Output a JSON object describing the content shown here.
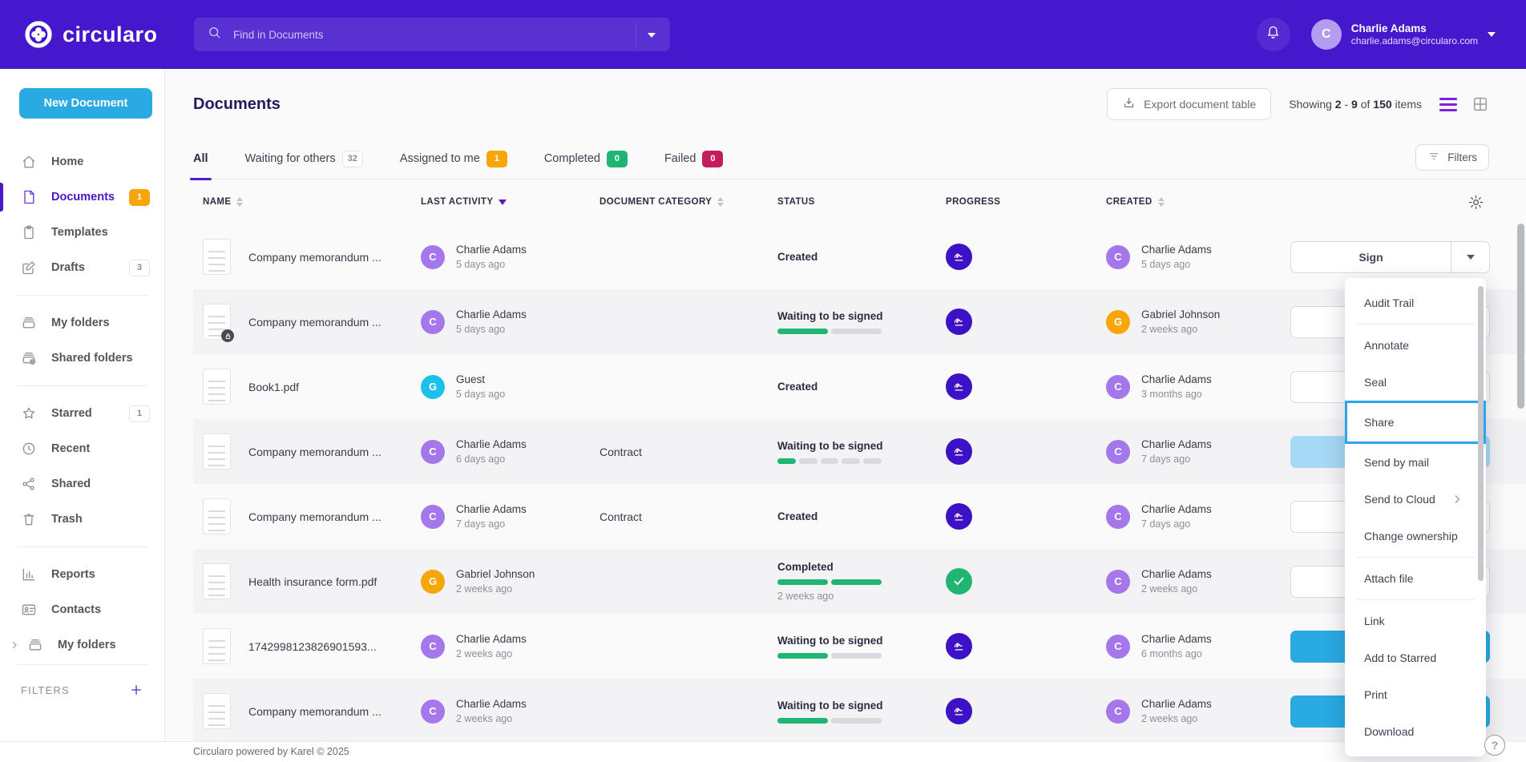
{
  "topbar": {
    "brand": "circularo",
    "search_placeholder": "Find in Documents",
    "user_initial": "C",
    "user_name": "Charlie Adams",
    "user_email": "charlie.adams@circularo.com"
  },
  "sidebar": {
    "new_document": "New Document",
    "sections": [
      {
        "items": [
          {
            "label": "Home",
            "icon": "home"
          },
          {
            "label": "Documents",
            "icon": "document",
            "active": true,
            "badge": "1",
            "badge_type": "orange"
          },
          {
            "label": "Templates",
            "icon": "template"
          },
          {
            "label": "Drafts",
            "icon": "draft",
            "badge": "3",
            "badge_type": "plain"
          }
        ]
      },
      {
        "items": [
          {
            "label": "My folders",
            "icon": "folder"
          },
          {
            "label": "Shared folders",
            "icon": "shared-folder"
          }
        ]
      },
      {
        "items": [
          {
            "label": "Starred",
            "icon": "star",
            "badge": "1",
            "badge_type": "plain"
          },
          {
            "label": "Recent",
            "icon": "clock"
          },
          {
            "label": "Shared",
            "icon": "share"
          },
          {
            "label": "Trash",
            "icon": "trash"
          }
        ]
      },
      {
        "items": [
          {
            "label": "Reports",
            "icon": "report"
          },
          {
            "label": "Contacts",
            "icon": "contact"
          },
          {
            "label": "My folders",
            "icon": "folder",
            "expandable": true
          }
        ]
      }
    ],
    "filters_label": "FILTERS"
  },
  "header": {
    "title": "Documents",
    "export_button": "Export document table",
    "showing": {
      "prefix": "Showing",
      "from": "2",
      "sep": "-",
      "to": "9",
      "of_word": "of",
      "total": "150",
      "items_word": "items"
    }
  },
  "tabs": [
    {
      "label": "All",
      "active": true
    },
    {
      "label": "Waiting for others",
      "badge": "32",
      "badge_type": "plain"
    },
    {
      "label": "Assigned to me",
      "badge": "1",
      "badge_type": "orange"
    },
    {
      "label": "Completed",
      "badge": "0",
      "badge_type": "green"
    },
    {
      "label": "Failed",
      "badge": "0",
      "badge_type": "red"
    }
  ],
  "filters_button": "Filters",
  "table": {
    "columns": [
      {
        "label": "NAME",
        "sort": "both"
      },
      {
        "label": "LAST ACTIVITY",
        "sort": "desc"
      },
      {
        "label": "DOCUMENT CATEGORY",
        "sort": "both"
      },
      {
        "label": "STATUS",
        "sort": "none"
      },
      {
        "label": "PROGRESS",
        "sort": "none"
      },
      {
        "label": "CREATED",
        "sort": "both"
      }
    ],
    "rows": [
      {
        "name": "Company memorandum ...",
        "locked": false,
        "activity": {
          "by": "Charlie Adams",
          "initial": "C",
          "color": "purple",
          "when": "5 days ago"
        },
        "category": "",
        "status": {
          "label": "Created",
          "when": "",
          "segments": []
        },
        "progress_icon": "signature",
        "created": {
          "by": "Charlie Adams",
          "initial": "C",
          "color": "purple",
          "when": "5 days ago"
        },
        "action_style": "outline",
        "action_label": "Sign"
      },
      {
        "name": "Company memorandum ...",
        "locked": true,
        "activity": {
          "by": "Charlie Adams",
          "initial": "C",
          "color": "purple",
          "when": "5 days ago"
        },
        "category": "",
        "status": {
          "label": "Waiting to be signed",
          "when": "",
          "segments": [
            "green",
            "gray"
          ]
        },
        "progress_icon": "signature",
        "created": {
          "by": "Gabriel Johnson",
          "initial": "G",
          "color": "orange",
          "when": "2 weeks ago"
        },
        "action_style": "outline",
        "action_label": "Sign"
      },
      {
        "name": "Book1.pdf",
        "locked": false,
        "activity": {
          "by": "Guest",
          "initial": "G",
          "color": "cyan",
          "when": "5 days ago"
        },
        "category": "",
        "status": {
          "label": "Created",
          "when": "",
          "segments": []
        },
        "progress_icon": "signature",
        "created": {
          "by": "Charlie Adams",
          "initial": "C",
          "color": "purple",
          "when": "3 months ago"
        },
        "action_style": "outline",
        "action_label": "Sign"
      },
      {
        "name": "Company memorandum ...",
        "locked": false,
        "activity": {
          "by": "Charlie Adams",
          "initial": "C",
          "color": "purple",
          "when": "6 days ago"
        },
        "category": "Contract",
        "status": {
          "label": "Waiting to be signed",
          "when": "",
          "segments": [
            "green",
            "gray",
            "gray",
            "gray",
            "gray"
          ]
        },
        "progress_icon": "signature",
        "created": {
          "by": "Charlie Adams",
          "initial": "C",
          "color": "purple",
          "when": "7 days ago"
        },
        "action_style": "active",
        "action_label": "Sign"
      },
      {
        "name": "Company memorandum ...",
        "locked": false,
        "activity": {
          "by": "Charlie Adams",
          "initial": "C",
          "color": "purple",
          "when": "7 days ago"
        },
        "category": "Contract",
        "status": {
          "label": "Created",
          "when": "",
          "segments": []
        },
        "progress_icon": "signature",
        "created": {
          "by": "Charlie Adams",
          "initial": "C",
          "color": "purple",
          "when": "7 days ago"
        },
        "action_style": "outline",
        "action_label": "Sign"
      },
      {
        "name": "Health insurance form.pdf",
        "locked": false,
        "activity": {
          "by": "Gabriel Johnson",
          "initial": "G",
          "color": "orange",
          "when": "2 weeks ago"
        },
        "category": "",
        "status": {
          "label": "Completed",
          "when": "2 weeks ago",
          "segments": [
            "green",
            "green"
          ]
        },
        "progress_icon": "check",
        "created": {
          "by": "Charlie Adams",
          "initial": "C",
          "color": "purple",
          "when": "2 weeks ago"
        },
        "action_style": "outline",
        "action_label": "Sign"
      },
      {
        "name": "1742998123826901593...",
        "locked": false,
        "activity": {
          "by": "Charlie Adams",
          "initial": "C",
          "color": "purple",
          "when": "2 weeks ago"
        },
        "category": "",
        "status": {
          "label": "Waiting to be signed",
          "when": "",
          "segments": [
            "green",
            "gray"
          ]
        },
        "progress_icon": "signature",
        "created": {
          "by": "Charlie Adams",
          "initial": "C",
          "color": "purple",
          "when": "6 months ago"
        },
        "action_style": "primary",
        "action_label": "Sign"
      },
      {
        "name": "Company memorandum ...",
        "locked": false,
        "activity": {
          "by": "Charlie Adams",
          "initial": "C",
          "color": "purple",
          "when": "2 weeks ago"
        },
        "category": "",
        "status": {
          "label": "Waiting to be signed",
          "when": "",
          "segments": [
            "green",
            "gray"
          ]
        },
        "progress_icon": "signature",
        "created": {
          "by": "Charlie Adams",
          "initial": "C",
          "color": "purple",
          "when": "2 weeks ago"
        },
        "action_style": "primary",
        "action_label": "Sign"
      }
    ]
  },
  "row_menu": {
    "items": [
      {
        "label": "Audit Trail",
        "divider_after": true
      },
      {
        "label": "Annotate"
      },
      {
        "label": "Seal"
      },
      {
        "label": "Share",
        "highlighted": true
      },
      {
        "label": "Send by mail"
      },
      {
        "label": "Send to Cloud",
        "submenu": true
      },
      {
        "label": "Change ownership",
        "divider_after": true
      },
      {
        "label": "Attach file",
        "divider_after": true
      },
      {
        "label": "Link"
      },
      {
        "label": "Add to Starred"
      },
      {
        "label": "Print"
      },
      {
        "label": "Download"
      }
    ]
  },
  "footer": {
    "text": "Circularo powered by Karel © 2025",
    "help_label": "?"
  },
  "colors": {
    "brand_purple": "#4517cd",
    "accent_cyan": "#29aae3",
    "success_green": "#21b573",
    "warning_orange": "#f7a60a",
    "danger_red": "#c21e5c",
    "highlight_blue": "#2ba7ea",
    "avatar_purple": "#a478eb",
    "avatar_cyan": "#1cc1e9",
    "progress_indigo": "#3d11c5",
    "active_tab_underline": "#5a18c9"
  }
}
